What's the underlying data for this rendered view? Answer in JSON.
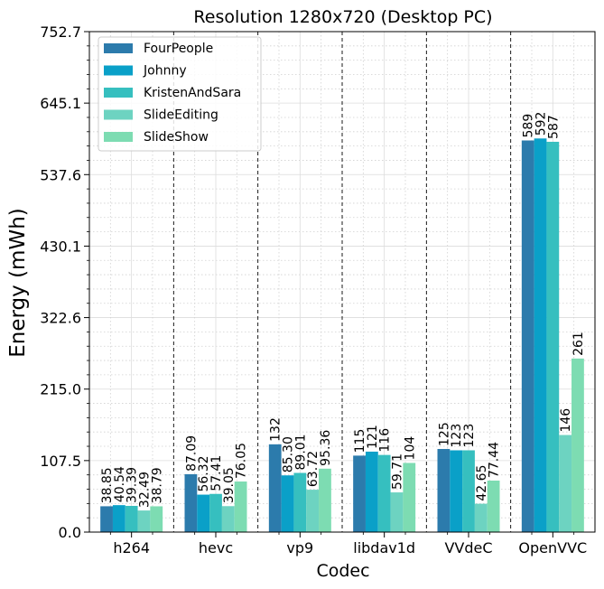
{
  "chart_data": {
    "type": "bar",
    "title": "Resolution 1280x720 (Desktop PC)",
    "xlabel": "Codec",
    "ylabel": "Energy (mWh)",
    "ylim": [
      0,
      752.7
    ],
    "yticks": [
      "0.0",
      "107.5",
      "215.0",
      "322.6",
      "430.1",
      "537.6",
      "645.1",
      "752.7"
    ],
    "grid": true,
    "legend_position": "top-left",
    "categories": [
      "h264",
      "hevc",
      "vp9",
      "libdav1d",
      "VVdeC",
      "OpenVVC"
    ],
    "series": [
      {
        "name": "FourPeople",
        "color": "#2c7bac",
        "values": [
          38.85,
          87.09,
          132,
          115,
          125,
          589
        ],
        "labels": [
          "38.85",
          "87.09",
          "132",
          "115",
          "125",
          "589"
        ]
      },
      {
        "name": "Johnny",
        "color": "#0aa0c8",
        "values": [
          40.54,
          56.32,
          85.3,
          121,
          123,
          592
        ],
        "labels": [
          "40.54",
          "56.32",
          "85.30",
          "121",
          "123",
          "592"
        ]
      },
      {
        "name": "KristenAndSara",
        "color": "#36bfbf",
        "values": [
          39.39,
          57.41,
          89.01,
          116,
          123,
          587
        ],
        "labels": [
          "39.39",
          "57.41",
          "89.01",
          "116",
          "123",
          "587"
        ]
      },
      {
        "name": "SlideEditing",
        "color": "#6dd3c1",
        "values": [
          32.49,
          39.05,
          63.72,
          59.71,
          42.65,
          146
        ],
        "labels": [
          "32.49",
          "39.05",
          "63.72",
          "59.71",
          "42.65",
          "146"
        ]
      },
      {
        "name": "SlideShow",
        "color": "#7ddcb2",
        "values": [
          38.79,
          76.05,
          95.36,
          104,
          77.44,
          261
        ],
        "labels": [
          "38.79",
          "76.05",
          "95.36",
          "104",
          "77.44",
          "261"
        ]
      }
    ]
  }
}
